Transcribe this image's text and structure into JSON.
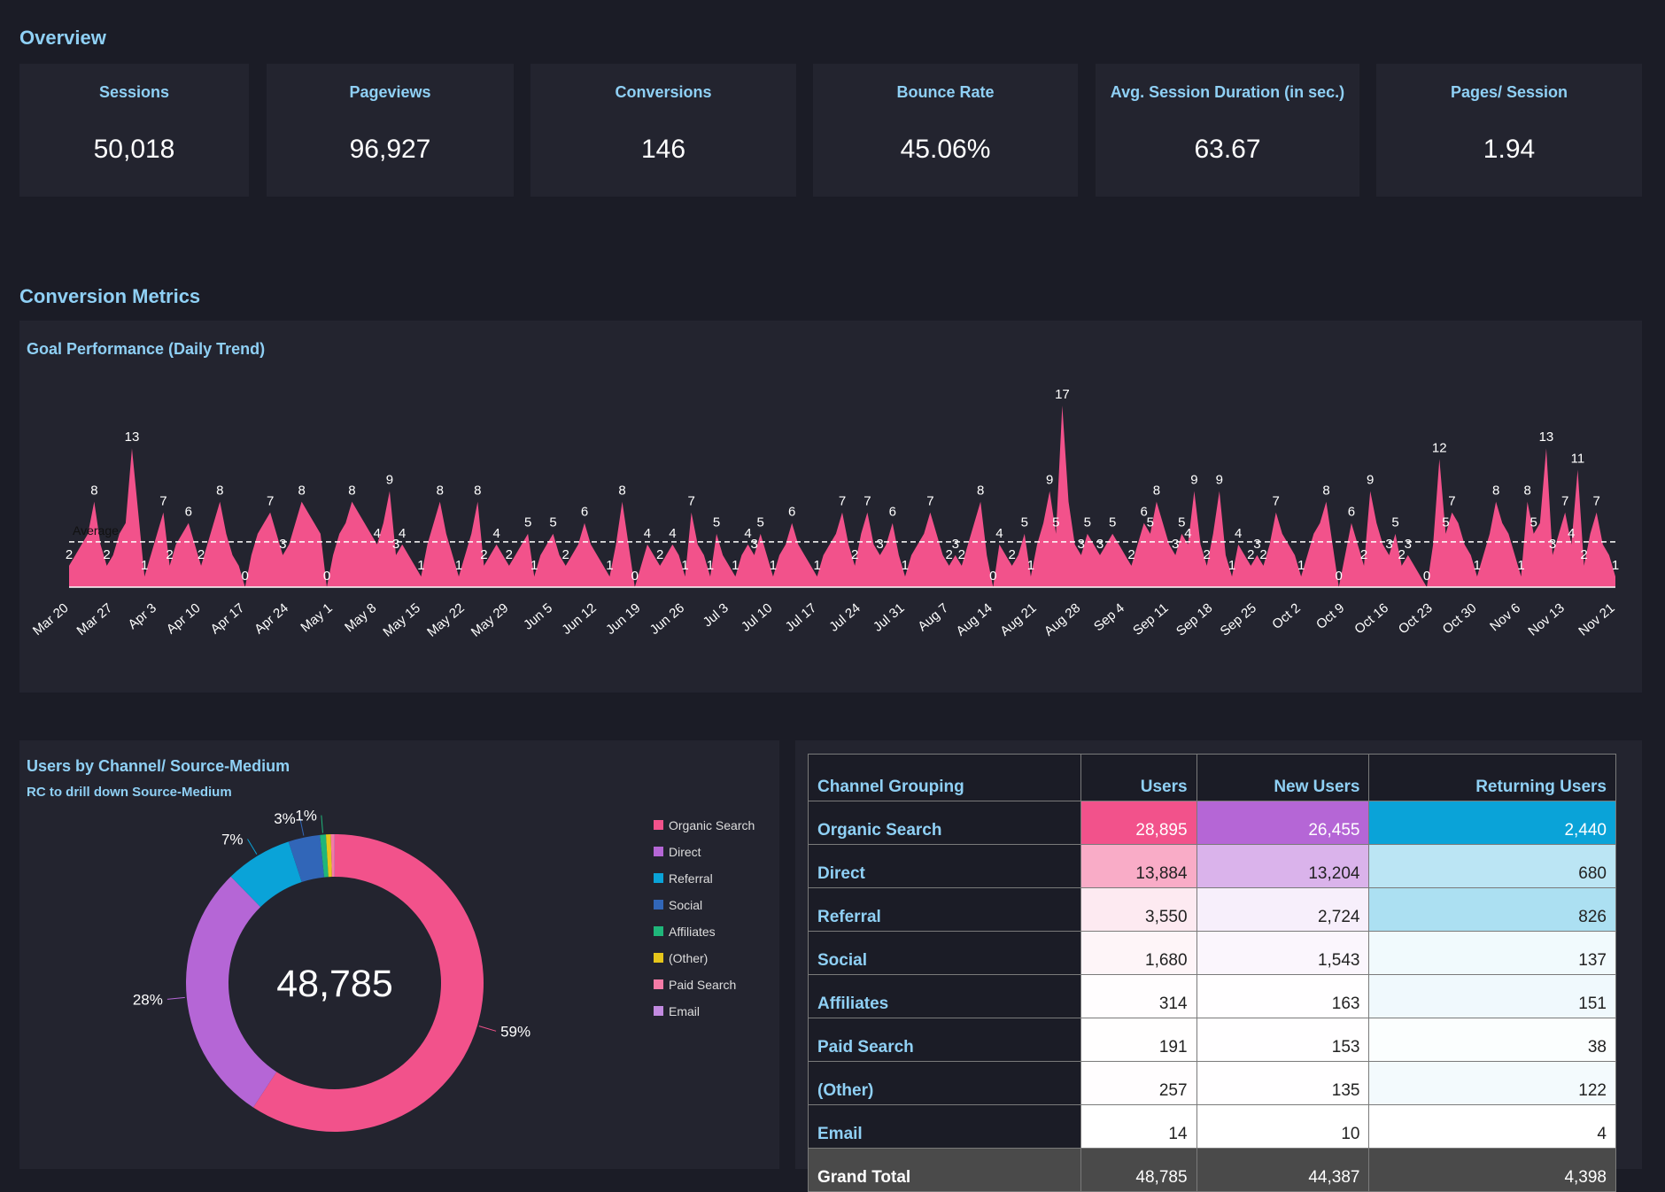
{
  "overview": {
    "title": "Overview",
    "cards": [
      {
        "label": "Sessions",
        "value": "50,018"
      },
      {
        "label": "Pageviews",
        "value": "96,927"
      },
      {
        "label": "Conversions",
        "value": "146"
      },
      {
        "label": "Bounce Rate",
        "value": "45.06%"
      },
      {
        "label": "Avg. Session Duration (in sec.)",
        "value": "63.67"
      },
      {
        "label": "Pages/ Session",
        "value": "1.94"
      }
    ]
  },
  "conversion_metrics": {
    "title": "Conversion Metrics"
  },
  "chart_data": [
    {
      "type": "area",
      "title": "Goal Performance (Daily Trend)",
      "annotation": "Average",
      "color": "#f2528b",
      "categories": [
        "Mar 20",
        null,
        null,
        null,
        null,
        null,
        null,
        "Mar 27",
        null,
        null,
        null,
        null,
        null,
        null,
        "Apr 3",
        null,
        null,
        null,
        null,
        null,
        null,
        "Apr 10",
        null,
        null,
        null,
        null,
        null,
        null,
        "Apr 17",
        null,
        null,
        null,
        null,
        null,
        null,
        "Apr 24",
        null,
        null,
        null,
        null,
        null,
        null,
        "May 1",
        null,
        null,
        null,
        null,
        null,
        null,
        "May 8",
        null,
        null,
        null,
        null,
        null,
        null,
        "May 15",
        null,
        null,
        null,
        null,
        null,
        null,
        "May 22",
        null,
        null,
        null,
        null,
        null,
        null,
        "May 29",
        null,
        null,
        null,
        null,
        null,
        null,
        "Jun 5",
        null,
        null,
        null,
        null,
        null,
        null,
        "Jun 12",
        null,
        null,
        null,
        null,
        null,
        null,
        "Jun 19",
        null,
        null,
        null,
        null,
        null,
        null,
        "Jun 26",
        null,
        null,
        null,
        null,
        null,
        null,
        "Jul 3",
        null,
        null,
        null,
        null,
        null,
        null,
        "Jul 10",
        null,
        null,
        null,
        null,
        null,
        null,
        "Jul 17",
        null,
        null,
        null,
        null,
        null,
        null,
        "Jul 24",
        null,
        null,
        null,
        null,
        null,
        null,
        "Jul 31",
        null,
        null,
        null,
        null,
        null,
        null,
        "Aug 7",
        null,
        null,
        null,
        null,
        null,
        null,
        "Aug 14",
        null,
        null,
        null,
        null,
        null,
        null,
        "Aug 21",
        null,
        null,
        null,
        null,
        null,
        null,
        "Aug 28",
        null,
        null,
        null,
        null,
        null,
        null,
        "Sep 4",
        null,
        null,
        null,
        null,
        null,
        null,
        "Sep 11",
        null,
        null,
        null,
        null,
        null,
        null,
        "Sep 18",
        null,
        null,
        null,
        null,
        null,
        null,
        "Sep 25",
        null,
        null,
        null,
        null,
        null,
        null,
        "Oct 2",
        null,
        null,
        null,
        null,
        null,
        null,
        "Oct 9",
        null,
        null,
        null,
        null,
        null,
        null,
        "Oct 16",
        null,
        null,
        null,
        null,
        null,
        null,
        "Oct 23",
        null,
        null,
        null,
        null,
        null,
        null,
        "Oct 30",
        null,
        null,
        null,
        null,
        null,
        null,
        "Nov 6",
        null,
        null,
        null,
        null,
        null,
        null,
        "Nov 13",
        null,
        null,
        null,
        null,
        null,
        null,
        null,
        "Nov 21"
      ],
      "values": [
        2,
        3,
        4,
        5,
        8,
        4,
        2,
        3,
        5,
        6,
        13,
        7,
        1,
        3,
        5,
        7,
        2,
        4,
        5,
        6,
        4,
        2,
        4,
        6,
        8,
        5,
        3,
        2,
        0,
        3,
        5,
        6,
        7,
        5,
        3,
        4,
        6,
        8,
        7,
        6,
        5,
        0,
        3,
        5,
        6,
        8,
        7,
        6,
        5,
        4,
        6,
        9,
        3,
        4,
        3,
        2,
        1,
        4,
        6,
        8,
        5,
        3,
        1,
        3,
        5,
        8,
        2,
        3,
        4,
        3,
        2,
        3,
        4,
        5,
        1,
        3,
        4,
        5,
        3,
        2,
        3,
        4,
        6,
        4,
        3,
        2,
        1,
        4,
        8,
        4,
        0,
        2,
        4,
        3,
        2,
        3,
        4,
        3,
        1,
        7,
        4,
        3,
        1,
        5,
        3,
        2,
        1,
        3,
        4,
        3,
        5,
        3,
        1,
        3,
        4,
        6,
        4,
        3,
        2,
        1,
        3,
        4,
        5,
        7,
        4,
        2,
        5,
        7,
        4,
        3,
        4,
        6,
        3,
        1,
        3,
        4,
        5,
        7,
        5,
        3,
        2,
        3,
        2,
        4,
        6,
        8,
        3,
        0,
        4,
        3,
        2,
        3,
        5,
        1,
        4,
        6,
        9,
        5,
        17,
        8,
        4,
        3,
        5,
        4,
        3,
        4,
        5,
        4,
        3,
        2,
        4,
        6,
        5,
        8,
        6,
        4,
        3,
        5,
        4,
        9,
        4,
        2,
        5,
        9,
        3,
        1,
        4,
        3,
        2,
        3,
        2,
        4,
        7,
        5,
        4,
        3,
        1,
        3,
        5,
        6,
        8,
        4,
        0,
        3,
        6,
        4,
        2,
        9,
        6,
        4,
        3,
        5,
        2,
        3,
        2,
        1,
        0,
        4,
        12,
        5,
        7,
        6,
        4,
        3,
        1,
        3,
        5,
        8,
        6,
        5,
        3,
        1,
        8,
        5,
        6,
        13,
        3,
        5,
        7,
        4,
        11,
        2,
        5,
        7,
        4,
        3,
        1
      ]
    },
    {
      "type": "pie",
      "title": "Users by Channel/ Source-Medium",
      "subtitle": "RC to drill down Source-Medium",
      "total": "48,785",
      "categories": [
        "Organic Search",
        "Direct",
        "Referral",
        "Social",
        "Affiliates",
        "(Other)",
        "Paid Search",
        "Email"
      ],
      "values": [
        59.23,
        28.46,
        7.28,
        3.44,
        0.64,
        0.53,
        0.39,
        0.03
      ],
      "value_labels": [
        "59%",
        "28%",
        "7%",
        "3%",
        "1%",
        null,
        null,
        null
      ],
      "colors": [
        "#f2528b",
        "#b566d6",
        "#0aa3d8",
        "#3166b8",
        "#1fb67a",
        "#e5c51b",
        "#f57aa6",
        "#c28ae0"
      ]
    }
  ],
  "table": {
    "columns": [
      "Channel Grouping",
      "Users",
      "New Users",
      "Returning Users"
    ],
    "colors": [
      null,
      "#f2528b",
      "#b566d6",
      "#0aa3d8"
    ],
    "rows": [
      [
        "Organic Search",
        "28,895",
        "26,455",
        "2,440"
      ],
      [
        "Direct",
        "13,884",
        "13,204",
        "680"
      ],
      [
        "Referral",
        "3,550",
        "2,724",
        "826"
      ],
      [
        "Social",
        "1,680",
        "1,543",
        "137"
      ],
      [
        "Affiliates",
        "314",
        "163",
        "151"
      ],
      [
        "Paid Search",
        "191",
        "153",
        "38"
      ],
      [
        "(Other)",
        "257",
        "135",
        "122"
      ],
      [
        "Email",
        "14",
        "10",
        "4"
      ]
    ],
    "total": [
      "Grand Total",
      "48,785",
      "44,387",
      "4,398"
    ]
  }
}
